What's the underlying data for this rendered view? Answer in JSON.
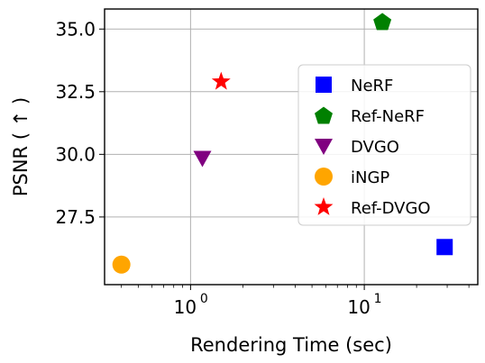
{
  "chart_data": {
    "type": "scatter",
    "xlabel": "Rendering Time (sec)",
    "ylabel": "PSNR ( ↑ )",
    "xscale": "log",
    "xlim": [
      0.32,
      45
    ],
    "ylim": [
      24.8,
      35.8
    ],
    "grid": true,
    "legend_position": "right",
    "x_ticks": [
      {
        "value": 1,
        "label": "10",
        "exp": "0"
      },
      {
        "value": 10,
        "label": "10",
        "exp": "1"
      }
    ],
    "y_ticks": [
      {
        "value": 27.5,
        "label": "27.5"
      },
      {
        "value": 30.0,
        "label": "30.0"
      },
      {
        "value": 32.5,
        "label": "32.5"
      },
      {
        "value": 35.0,
        "label": "35.0"
      }
    ],
    "series": [
      {
        "name": "NeRF",
        "marker": "square",
        "color": "#0000ff",
        "x": 29,
        "y": 26.3
      },
      {
        "name": "Ref-NeRF",
        "marker": "pentagon",
        "color": "#008000",
        "x": 12.7,
        "y": 35.3
      },
      {
        "name": "DVGO",
        "marker": "triangle-down",
        "color": "#800080",
        "x": 1.17,
        "y": 29.85
      },
      {
        "name": "iNGP",
        "marker": "circle",
        "color": "#ffa500",
        "x": 0.4,
        "y": 25.6
      },
      {
        "name": "Ref-DVGO",
        "marker": "star",
        "color": "#ff0000",
        "x": 1.5,
        "y": 32.9
      }
    ]
  }
}
